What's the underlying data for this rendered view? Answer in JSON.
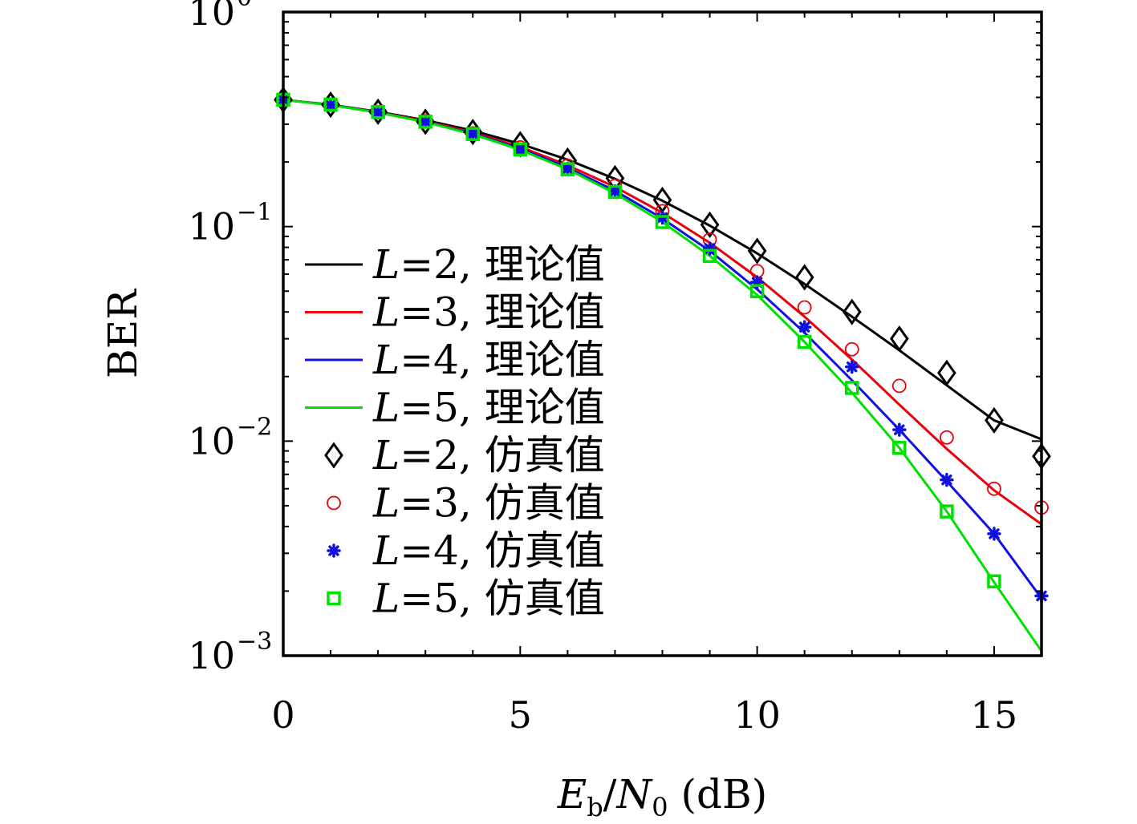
{
  "chart_data": {
    "type": "line",
    "title": "",
    "xlabel": {
      "main": "E",
      "sub1": "b",
      "slash": "/",
      "main2": "N",
      "sub2": "0",
      "unit": " (dB)"
    },
    "ylabel": "BER",
    "xlim": [
      0,
      16
    ],
    "ylim": [
      0.001,
      1
    ],
    "yscale": "log",
    "grid": false,
    "legend_position": "center-left",
    "x_ticks": [
      "0",
      "5",
      "10",
      "15"
    ],
    "x_tick_values": [
      0,
      5,
      10,
      15
    ],
    "y_ticks": [
      {
        "value": 1,
        "base": "10",
        "exp": "0"
      },
      {
        "value": 0.1,
        "base": "10",
        "exp": "−1"
      },
      {
        "value": 0.01,
        "base": "10",
        "exp": "−2"
      },
      {
        "value": 0.001,
        "base": "10",
        "exp": "−3"
      }
    ],
    "series": [
      {
        "legend_var": "L",
        "legend_eq": "=2, 理论值",
        "kind": "line",
        "color": "#000000",
        "x": [
          0,
          1,
          2,
          3,
          4,
          5,
          6,
          7,
          8,
          9,
          10,
          11,
          12,
          13,
          14,
          15,
          16
        ],
        "y": [
          0.39,
          0.37,
          0.343,
          0.313,
          0.28,
          0.243,
          0.205,
          0.167,
          0.132,
          0.101,
          0.075,
          0.054,
          0.038,
          0.0265,
          0.0182,
          0.0125,
          0.0102
        ]
      },
      {
        "legend_var": "L",
        "legend_eq": "=3, 理论值",
        "kind": "line",
        "color": "#e8000b",
        "x": [
          0,
          1,
          2,
          3,
          4,
          5,
          6,
          7,
          8,
          9,
          10,
          11,
          12,
          13,
          14,
          15,
          16
        ],
        "y": [
          0.39,
          0.369,
          0.342,
          0.31,
          0.274,
          0.235,
          0.193,
          0.153,
          0.116,
          0.084,
          0.058,
          0.038,
          0.024,
          0.0148,
          0.0092,
          0.0059,
          0.0041
        ]
      },
      {
        "legend_var": "L",
        "legend_eq": "=4, 理论值",
        "kind": "line",
        "color": "#1010e0",
        "x": [
          0,
          1,
          2,
          3,
          4,
          5,
          6,
          7,
          8,
          9,
          10,
          11,
          12,
          13,
          14,
          15,
          16
        ],
        "y": [
          0.39,
          0.369,
          0.341,
          0.308,
          0.271,
          0.231,
          0.188,
          0.147,
          0.109,
          0.077,
          0.051,
          0.032,
          0.0192,
          0.0113,
          0.0065,
          0.0037,
          0.00185
        ]
      },
      {
        "legend_var": "L",
        "legend_eq": "=5, 理论值",
        "kind": "line",
        "color": "#00e000",
        "x": [
          0,
          1,
          2,
          3,
          4,
          5,
          6,
          7,
          8,
          9,
          10,
          11,
          12,
          13,
          14,
          15,
          16
        ],
        "y": [
          0.39,
          0.368,
          0.34,
          0.307,
          0.269,
          0.228,
          0.185,
          0.143,
          0.105,
          0.073,
          0.048,
          0.029,
          0.0168,
          0.0093,
          0.0047,
          0.0022,
          0.00105
        ]
      },
      {
        "legend_var": "L",
        "legend_eq": "=2, 仿真值",
        "kind": "diamond",
        "color": "#000000",
        "x": [
          0,
          1,
          2,
          3,
          4,
          5,
          6,
          7,
          8,
          9,
          10,
          11,
          12,
          13,
          14,
          15,
          16
        ],
        "y": [
          0.39,
          0.37,
          0.343,
          0.308,
          0.276,
          0.242,
          0.203,
          0.168,
          0.133,
          0.102,
          0.077,
          0.058,
          0.04,
          0.03,
          0.0208,
          0.0125,
          0.0085
        ]
      },
      {
        "legend_var": "L",
        "legend_eq": "=3, 仿真值",
        "kind": "circle",
        "color": "#e8000b",
        "x": [
          0,
          1,
          2,
          3,
          4,
          5,
          6,
          7,
          8,
          9,
          10,
          11,
          12,
          13,
          14,
          15,
          16
        ],
        "y": [
          0.39,
          0.37,
          0.342,
          0.31,
          0.272,
          0.234,
          0.192,
          0.155,
          0.118,
          0.087,
          0.062,
          0.042,
          0.0268,
          0.0181,
          0.0104,
          0.006,
          0.0049
        ]
      },
      {
        "legend_var": "L",
        "legend_eq": "=4, 仿真值",
        "kind": "star",
        "color": "#1010e0",
        "x": [
          0,
          1,
          2,
          3,
          4,
          5,
          6,
          7,
          8,
          9,
          10,
          11,
          12,
          13,
          14,
          15,
          16
        ],
        "y": [
          0.39,
          0.369,
          0.341,
          0.308,
          0.27,
          0.229,
          0.186,
          0.146,
          0.11,
          0.079,
          0.055,
          0.034,
          0.0222,
          0.0113,
          0.0066,
          0.0037,
          0.0019
        ]
      },
      {
        "legend_var": "L",
        "legend_eq": "=5, 仿真值",
        "kind": "square",
        "color": "#00e000",
        "x": [
          0,
          1,
          2,
          3,
          4,
          5,
          6,
          7,
          8,
          9,
          10,
          11,
          12,
          13,
          14,
          15
        ],
        "y": [
          0.39,
          0.37,
          0.342,
          0.308,
          0.27,
          0.229,
          0.185,
          0.145,
          0.105,
          0.073,
          0.05,
          0.029,
          0.0177,
          0.0093,
          0.0047,
          0.00222
        ]
      }
    ]
  }
}
